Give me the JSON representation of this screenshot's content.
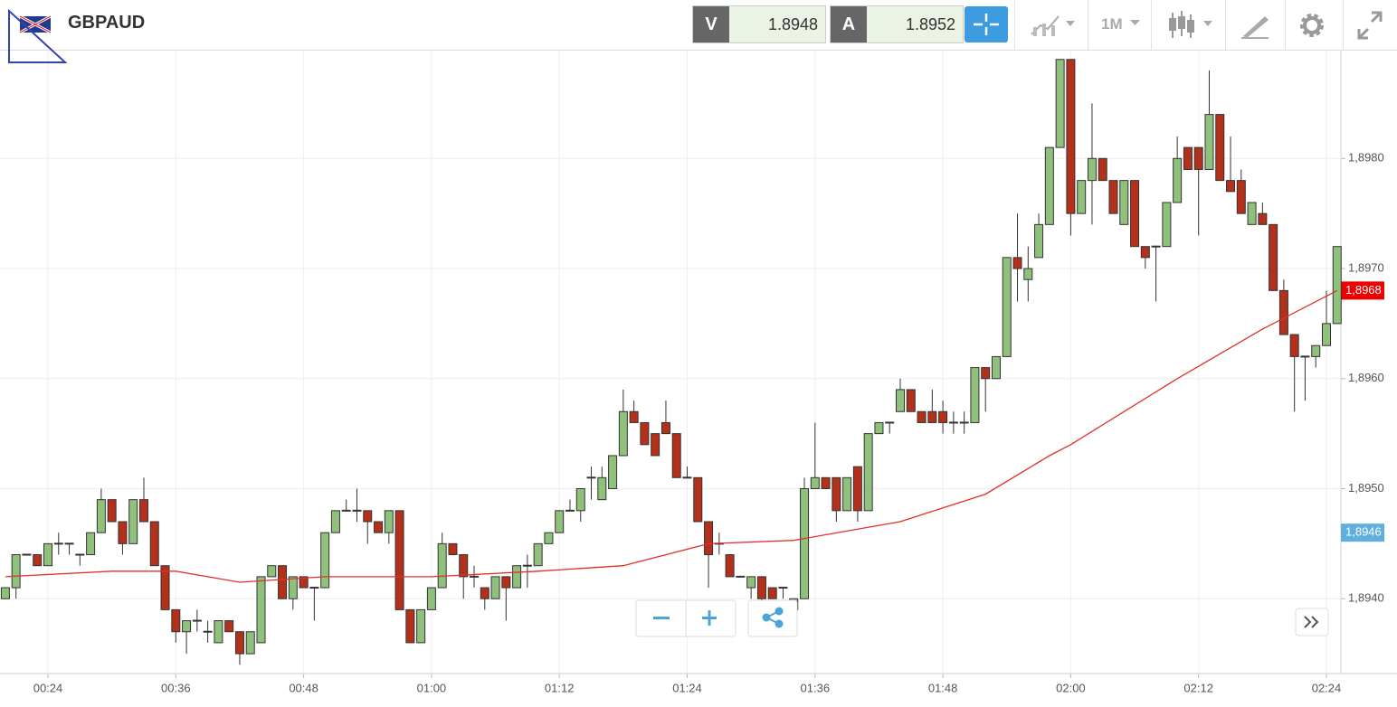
{
  "header": {
    "symbol": "GBPAUD",
    "bid": {
      "label": "V",
      "value": "1.8948"
    },
    "ask": {
      "label": "A",
      "value": "1.8952"
    },
    "timeframe": "1M"
  },
  "chart_data": {
    "type": "candlestick",
    "x": [
      "00:20",
      "00:21",
      "00:22",
      "00:23",
      "00:24",
      "00:25",
      "00:26",
      "00:27",
      "00:28",
      "00:29",
      "00:30",
      "00:31",
      "00:32",
      "00:33",
      "00:34",
      "00:35",
      "00:36",
      "00:37",
      "00:38",
      "00:39",
      "00:40",
      "00:41",
      "00:42",
      "00:43",
      "00:44",
      "00:45",
      "00:46",
      "00:47",
      "00:48",
      "00:49",
      "00:50",
      "00:51",
      "00:52",
      "00:53",
      "00:54",
      "00:55",
      "00:56",
      "00:57",
      "00:58",
      "00:59",
      "01:00",
      "01:01",
      "01:02",
      "01:03",
      "01:04",
      "01:05",
      "01:06",
      "01:07",
      "01:08",
      "01:09",
      "01:10",
      "01:11",
      "01:12",
      "01:13",
      "01:14",
      "01:15",
      "01:16",
      "01:17",
      "01:18",
      "01:19",
      "01:20",
      "01:21",
      "01:22",
      "01:23",
      "01:24",
      "01:25",
      "01:26",
      "01:27",
      "01:28",
      "01:29",
      "01:30",
      "01:31",
      "01:32",
      "01:33",
      "01:34",
      "01:35",
      "01:36",
      "01:37",
      "01:38",
      "01:39",
      "01:40",
      "01:41",
      "01:42",
      "01:43",
      "01:44",
      "01:45",
      "01:46",
      "01:47",
      "01:48",
      "01:49",
      "01:50",
      "01:51",
      "01:52",
      "01:53",
      "01:54",
      "01:55",
      "01:56",
      "01:57",
      "01:58",
      "01:59",
      "02:00",
      "02:01",
      "02:02",
      "02:03",
      "02:04",
      "02:05",
      "02:06",
      "02:07",
      "02:08",
      "02:09",
      "02:10",
      "02:11",
      "02:12",
      "02:13",
      "02:14",
      "02:15",
      "02:16",
      "02:17",
      "02:18",
      "02:19",
      "02:20",
      "02:21",
      "02:22",
      "02:23",
      "02:24",
      "02:25"
    ],
    "open": [
      1.894,
      1.8941,
      1.8944,
      1.8944,
      1.8943,
      1.8945,
      1.8945,
      1.8944,
      1.8944,
      1.8946,
      1.8949,
      1.8947,
      1.8945,
      1.8949,
      1.8947,
      1.8943,
      1.8939,
      1.8937,
      1.8938,
      1.8937,
      1.8936,
      1.8938,
      1.8937,
      1.8935,
      1.8936,
      1.8942,
      1.8943,
      1.894,
      1.8942,
      1.8941,
      1.8941,
      1.8946,
      1.8948,
      1.8948,
      1.8948,
      1.8947,
      1.8946,
      1.8948,
      1.8939,
      1.8936,
      1.8939,
      1.8941,
      1.8945,
      1.8944,
      1.8942,
      1.8941,
      1.894,
      1.8942,
      1.8941,
      1.8943,
      1.8943,
      1.8945,
      1.8946,
      1.8948,
      1.8948,
      1.8951,
      1.8949,
      1.895,
      1.8953,
      1.8957,
      1.8956,
      1.8955,
      1.8956,
      1.8955,
      1.8951,
      1.8951,
      1.8947,
      1.8945,
      1.8944,
      1.8942,
      1.8941,
      1.8942,
      1.8941,
      1.8941,
      1.8939,
      1.894,
      1.895,
      1.8951,
      1.8951,
      1.8948,
      1.8952,
      1.8948,
      1.8955,
      1.8956,
      1.8957,
      1.8959,
      1.8957,
      1.8957,
      1.8957,
      1.8956,
      1.8956,
      1.8956,
      1.8961,
      1.896,
      1.8962,
      1.8971,
      1.8969,
      1.8971,
      1.8974,
      1.8981,
      1.8989,
      1.8975,
      1.8978,
      1.898,
      1.8978,
      1.8974,
      1.8978,
      1.8972,
      1.8972,
      1.8972,
      1.8976,
      1.8981,
      1.8981,
      1.8979,
      1.8984,
      1.8978,
      1.8978,
      1.8974,
      1.8975,
      1.8974,
      1.8968,
      1.8964,
      1.8962,
      1.8962,
      1.8963,
      1.8965
    ],
    "high": [
      1.8941,
      1.8944,
      1.8944,
      1.8944,
      1.8945,
      1.8946,
      1.8945,
      1.8944,
      1.8946,
      1.895,
      1.8949,
      1.8947,
      1.8949,
      1.8951,
      1.8947,
      1.8943,
      1.8939,
      1.8938,
      1.8939,
      1.8938,
      1.8938,
      1.8938,
      1.8937,
      1.8937,
      1.8942,
      1.8943,
      1.8943,
      1.8942,
      1.8942,
      1.8941,
      1.8946,
      1.8948,
      1.8949,
      1.895,
      1.8948,
      1.8947,
      1.8948,
      1.8948,
      1.8939,
      1.8939,
      1.8941,
      1.8946,
      1.8945,
      1.8944,
      1.8943,
      1.8941,
      1.8942,
      1.8942,
      1.8943,
      1.8944,
      1.8945,
      1.8946,
      1.8948,
      1.8949,
      1.895,
      1.8952,
      1.8952,
      1.8953,
      1.8959,
      1.8958,
      1.8956,
      1.8955,
      1.8958,
      1.8955,
      1.8952,
      1.8951,
      1.8947,
      1.8946,
      1.8944,
      1.8942,
      1.8942,
      1.8942,
      1.8941,
      1.8941,
      1.894,
      1.8951,
      1.8956,
      1.8951,
      1.8951,
      1.8951,
      1.8952,
      1.8955,
      1.8956,
      1.8956,
      1.896,
      1.8959,
      1.8957,
      1.8959,
      1.8958,
      1.8957,
      1.8957,
      1.8961,
      1.8961,
      1.8962,
      1.8971,
      1.8975,
      1.8972,
      1.8975,
      1.8981,
      1.8989,
      1.8989,
      1.8978,
      1.8985,
      1.898,
      1.8978,
      1.8978,
      1.8978,
      1.8972,
      1.8972,
      1.8976,
      1.8982,
      1.8981,
      1.8981,
      1.8988,
      1.8984,
      1.8982,
      1.8979,
      1.8976,
      1.8976,
      1.8974,
      1.8969,
      1.8964,
      1.8962,
      1.8963,
      1.8968,
      1.8972
    ],
    "low": [
      1.894,
      1.894,
      1.8944,
      1.8943,
      1.8943,
      1.8944,
      1.8944,
      1.8943,
      1.8944,
      1.8946,
      1.8947,
      1.8944,
      1.8945,
      1.8947,
      1.8943,
      1.8939,
      1.8936,
      1.8935,
      1.8937,
      1.8936,
      1.8936,
      1.8937,
      1.8934,
      1.8935,
      1.8936,
      1.8942,
      1.894,
      1.8939,
      1.8941,
      1.8938,
      1.8941,
      1.8946,
      1.8948,
      1.8947,
      1.8945,
      1.8946,
      1.8945,
      1.8939,
      1.8936,
      1.8936,
      1.8939,
      1.8941,
      1.8944,
      1.894,
      1.8941,
      1.8939,
      1.894,
      1.8938,
      1.8941,
      1.8941,
      1.8943,
      1.8945,
      1.8946,
      1.8948,
      1.8947,
      1.8949,
      1.8949,
      1.895,
      1.8953,
      1.8956,
      1.8954,
      1.8953,
      1.8955,
      1.8951,
      1.8951,
      1.8947,
      1.8941,
      1.8944,
      1.8942,
      1.8942,
      1.894,
      1.8939,
      1.894,
      1.894,
      1.8939,
      1.894,
      1.895,
      1.895,
      1.8947,
      1.8948,
      1.8947,
      1.8948,
      1.8955,
      1.8955,
      1.8957,
      1.8957,
      1.8956,
      1.8956,
      1.8955,
      1.8955,
      1.8955,
      1.8956,
      1.8957,
      1.896,
      1.8962,
      1.8967,
      1.8967,
      1.8971,
      1.8974,
      1.8981,
      1.8973,
      1.8975,
      1.8974,
      1.8978,
      1.8975,
      1.8974,
      1.8972,
      1.897,
      1.8967,
      1.8972,
      1.8976,
      1.8979,
      1.8973,
      1.8979,
      1.8978,
      1.8977,
      1.8975,
      1.8974,
      1.8974,
      1.8968,
      1.8964,
      1.8957,
      1.8958,
      1.8961,
      1.8963,
      1.8965
    ],
    "close": [
      1.8941,
      1.8944,
      1.8944,
      1.8943,
      1.8945,
      1.8945,
      1.8945,
      1.8944,
      1.8946,
      1.8949,
      1.8947,
      1.8945,
      1.8949,
      1.8947,
      1.8943,
      1.8939,
      1.8937,
      1.8938,
      1.8938,
      1.8937,
      1.8938,
      1.8937,
      1.8935,
      1.8937,
      1.8942,
      1.8943,
      1.894,
      1.8942,
      1.8941,
      1.8941,
      1.8946,
      1.8948,
      1.8948,
      1.8948,
      1.8947,
      1.8946,
      1.8948,
      1.8939,
      1.8936,
      1.8939,
      1.8941,
      1.8945,
      1.8944,
      1.8942,
      1.8942,
      1.894,
      1.8942,
      1.8941,
      1.8943,
      1.8943,
      1.8945,
      1.8946,
      1.8948,
      1.8948,
      1.895,
      1.8951,
      1.8951,
      1.8953,
      1.8957,
      1.8956,
      1.8954,
      1.8953,
      1.8955,
      1.8951,
      1.8951,
      1.8947,
      1.8944,
      1.8945,
      1.8942,
      1.8942,
      1.8942,
      1.894,
      1.894,
      1.8941,
      1.894,
      1.895,
      1.8951,
      1.895,
      1.8948,
      1.8951,
      1.8948,
      1.8955,
      1.8956,
      1.8956,
      1.8959,
      1.8957,
      1.8956,
      1.8956,
      1.8956,
      1.8956,
      1.8956,
      1.8961,
      1.896,
      1.8962,
      1.8971,
      1.897,
      1.897,
      1.8974,
      1.8981,
      1.8989,
      1.8975,
      1.8978,
      1.898,
      1.8978,
      1.8975,
      1.8978,
      1.8972,
      1.8971,
      1.8972,
      1.8976,
      1.898,
      1.8979,
      1.8979,
      1.8984,
      1.8978,
      1.8977,
      1.8975,
      1.8976,
      1.8974,
      1.8968,
      1.8964,
      1.8962,
      1.8962,
      1.8963,
      1.8965,
      1.8972
    ],
    "up_color": "#8fc07c",
    "down_color": "#b3311b",
    "ma": {
      "color": "#e0312a",
      "x": [
        "00:20",
        "00:30",
        "00:36",
        "00:42",
        "00:50",
        "01:00",
        "01:10",
        "01:18",
        "01:26",
        "01:34",
        "01:44",
        "01:52",
        "01:58",
        "02:00",
        "02:10",
        "02:18",
        "02:25"
      ],
      "values": [
        1.8942,
        1.89425,
        1.89425,
        1.89415,
        1.8942,
        1.8942,
        1.89425,
        1.8943,
        1.8945,
        1.89453,
        1.8947,
        1.89495,
        1.8953,
        1.8954,
        1.896,
        1.89645,
        1.8968
      ]
    },
    "price_labels": [
      {
        "value": 1.8968,
        "label": "1,8968",
        "color": "#ee0000"
      },
      {
        "value": 1.8946,
        "label": "1,8946",
        "color": "#5fb0dd"
      }
    ],
    "ylim": [
      1.89332,
      1.89898
    ],
    "yticks": [
      {
        "value": 1.894,
        "label": "1,8940"
      },
      {
        "value": 1.895,
        "label": "1,8950"
      },
      {
        "value": 1.896,
        "label": "1,8960"
      },
      {
        "value": 1.897,
        "label": "1,8970"
      },
      {
        "value": 1.898,
        "label": "1,8980"
      }
    ],
    "xticks": [
      "00:24",
      "00:36",
      "00:48",
      "01:00",
      "01:12",
      "01:24",
      "01:36",
      "01:48",
      "02:00",
      "02:12",
      "02:24"
    ],
    "grid": true
  }
}
